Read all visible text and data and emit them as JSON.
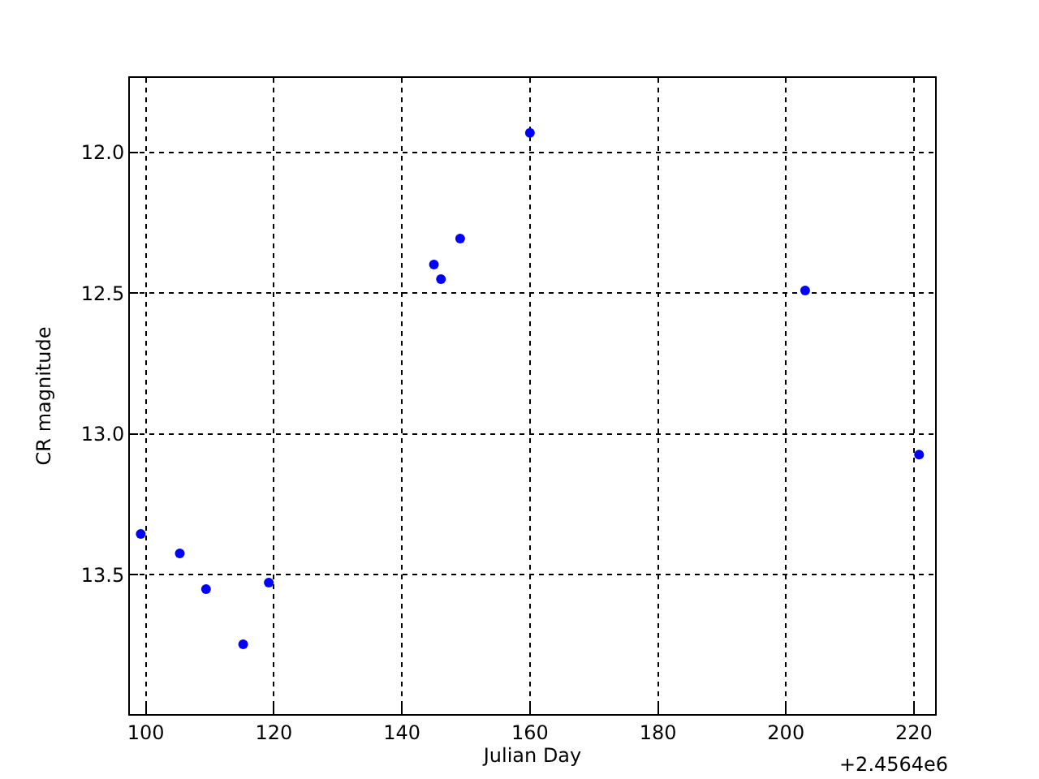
{
  "chart_data": {
    "type": "scatter",
    "xlabel": "Julian Day",
    "ylabel": "CR magnitude",
    "x": [
      99.2,
      105.3,
      109.4,
      115.2,
      119.2,
      145.0,
      146.1,
      149.1,
      160.0,
      203.0,
      220.8
    ],
    "series": [
      {
        "color": "#0000ff",
        "values": [
          13.355,
          13.424,
          13.551,
          13.747,
          13.528,
          12.398,
          12.45,
          12.306,
          11.93,
          12.49,
          13.073
        ]
      }
    ],
    "xlim": [
      97.5,
      223.3
    ],
    "ylim": [
      13.995,
      11.735
    ],
    "xticks": [
      100,
      120,
      140,
      160,
      180,
      200,
      220
    ],
    "yticks": [
      {
        "value": 12.0,
        "label": "12.0"
      },
      {
        "value": 12.5,
        "label": "12.5"
      },
      {
        "value": 13.0,
        "label": "13.0"
      },
      {
        "value": 13.5,
        "label": "13.5"
      }
    ],
    "annotations": [
      "+2.4564e6"
    ],
    "grid": true,
    "marker": "circle"
  }
}
